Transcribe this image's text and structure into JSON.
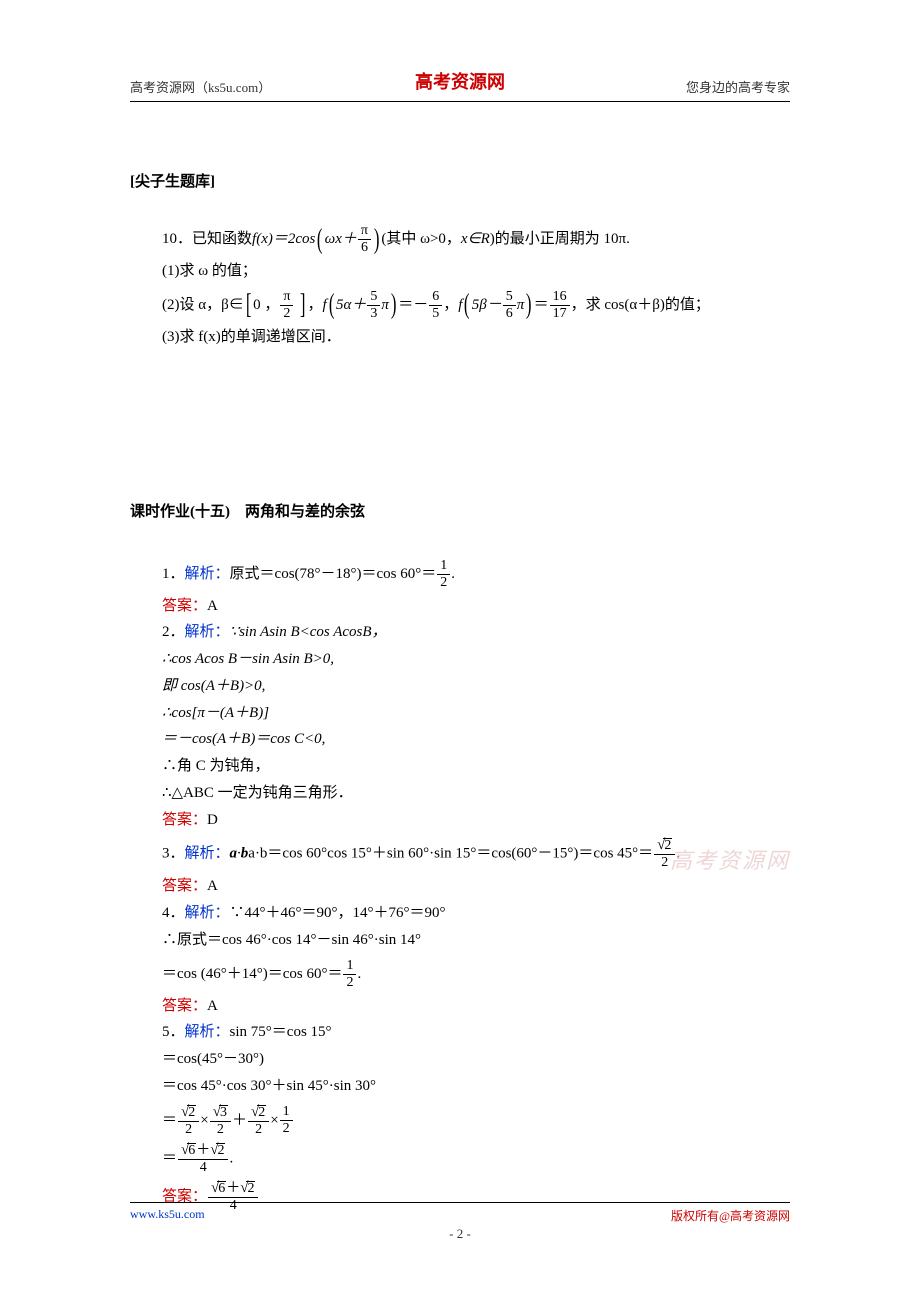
{
  "header": {
    "left": "高考资源网（ks5u.com）",
    "center": "高考资源网",
    "right": "您身边的高考专家"
  },
  "section1": {
    "title": "[尖子生题库]",
    "problem_num": "10．",
    "line1_a": "已知函数",
    "line1_fx": "f(x)＝2cos",
    "line1_arg_a": "ωx＋",
    "line1_frac_num": "π",
    "line1_frac_den": "6",
    "line1_b": "(其中 ω>0，",
    "line1_c": "x∈R",
    "line1_d": ")的最小正周期为 10π.",
    "line2": "(1)求 ω 的值；",
    "line3_a": "(2)设 α，β∈",
    "line3_range_a": "0 ，",
    "line3_range_num": "π",
    "line3_range_den": "2",
    "line3_b": "，",
    "line3_f1_a": "f",
    "line3_f1_arg_a": "5α＋",
    "line3_f1_num": "5",
    "line3_f1_den": "3",
    "line3_f1_arg_b": "π",
    "line3_eq1": "＝－",
    "line3_val1_num": "6",
    "line3_val1_den": "5",
    "line3_c": "，",
    "line3_f2_a": "f",
    "line3_f2_arg_a": "5β－",
    "line3_f2_num": "5",
    "line3_f2_den": "6",
    "line3_f2_arg_b": "π",
    "line3_eq2": "＝",
    "line3_val2_num": "16",
    "line3_val2_den": "17",
    "line3_d": "，求 cos(α＋β)的值；",
    "line4": "(3)求 f(x)的单调递增区间．"
  },
  "section2": {
    "title": "课时作业(十五)　两角和与差的余弦",
    "q1": {
      "num": "1．",
      "jiexi_label": "解析：",
      "text_a": "原式＝cos(78°－18°)＝cos 60°＝",
      "frac_num": "1",
      "frac_den": "2",
      "dot": ".",
      "daan_label": "答案：",
      "answer": "A"
    },
    "q2": {
      "num": "2．",
      "jiexi_label": "解析：",
      "l1": "∵sin Asin B<cos AcosB，",
      "l2": "∴cos Acos B－sin Asin B>0,",
      "l3": "即 cos(A＋B)>0,",
      "l4": "∴cos[π－(A＋B)]",
      "l5": "＝－cos(A＋B)＝cos C<0,",
      "l6": "∴角 C 为钝角，",
      "l7": "∴△ABC 一定为钝角三角形．",
      "daan_label": "答案：",
      "answer": "D"
    },
    "q3": {
      "num": "3．",
      "jiexi_label": "解析：",
      "text_a": "a·b＝cos 60°cos 15°＋sin 60°·sin 15°＝cos(60°－15°)＝cos 45°＝",
      "frac_num_sqrt": "2",
      "frac_den": "2",
      "dot": ".",
      "daan_label": "答案：",
      "answer": "A"
    },
    "q4": {
      "num": "4．",
      "jiexi_label": "解析：",
      "l1": "∵44°＋46°＝90°，14°＋76°＝90°",
      "l2": "∴原式＝cos 46°·cos 14°－sin 46°·sin 14°",
      "l3_a": "＝cos (46°＋14°)＝cos 60°＝",
      "l3_num": "1",
      "l3_den": "2",
      "l3_dot": ".",
      "daan_label": "答案：",
      "answer": "A"
    },
    "q5": {
      "num": "5．",
      "jiexi_label": "解析：",
      "l1": "sin 75°＝cos 15°",
      "l2": "＝cos(45°－30°)",
      "l3": "＝cos 45°·cos 30°＋sin 45°·sin 30°",
      "l4_eq": "＝",
      "l4_f1_num_sqrt": "2",
      "l4_f1_den": "2",
      "l4_x1": "×",
      "l4_f2_num_sqrt": "3",
      "l4_f2_den": "2",
      "l4_plus": "＋",
      "l4_f3_num_sqrt": "2",
      "l4_f3_den": "2",
      "l4_x2": "×",
      "l4_f4_num": "1",
      "l4_f4_den": "2",
      "l5_eq": "＝",
      "l5_num_sqrts": [
        "6",
        "2"
      ],
      "l5_num_plus": "＋",
      "l5_den": "4",
      "l5_dot": ".",
      "daan_label": "答案：",
      "ans_num_sqrts": [
        "6",
        "2"
      ],
      "ans_num_plus": "＋",
      "ans_den": "4"
    }
  },
  "watermark": "高考资源网",
  "footer": {
    "left": "www.ks5u.com",
    "right": "版权所有@高考资源网",
    "page": "- 2 -"
  },
  "colors": {
    "red": "#cc0000",
    "blue": "#0033cc",
    "black": "#000000",
    "bg": "#ffffff",
    "watermark": "#e8c5c5"
  }
}
